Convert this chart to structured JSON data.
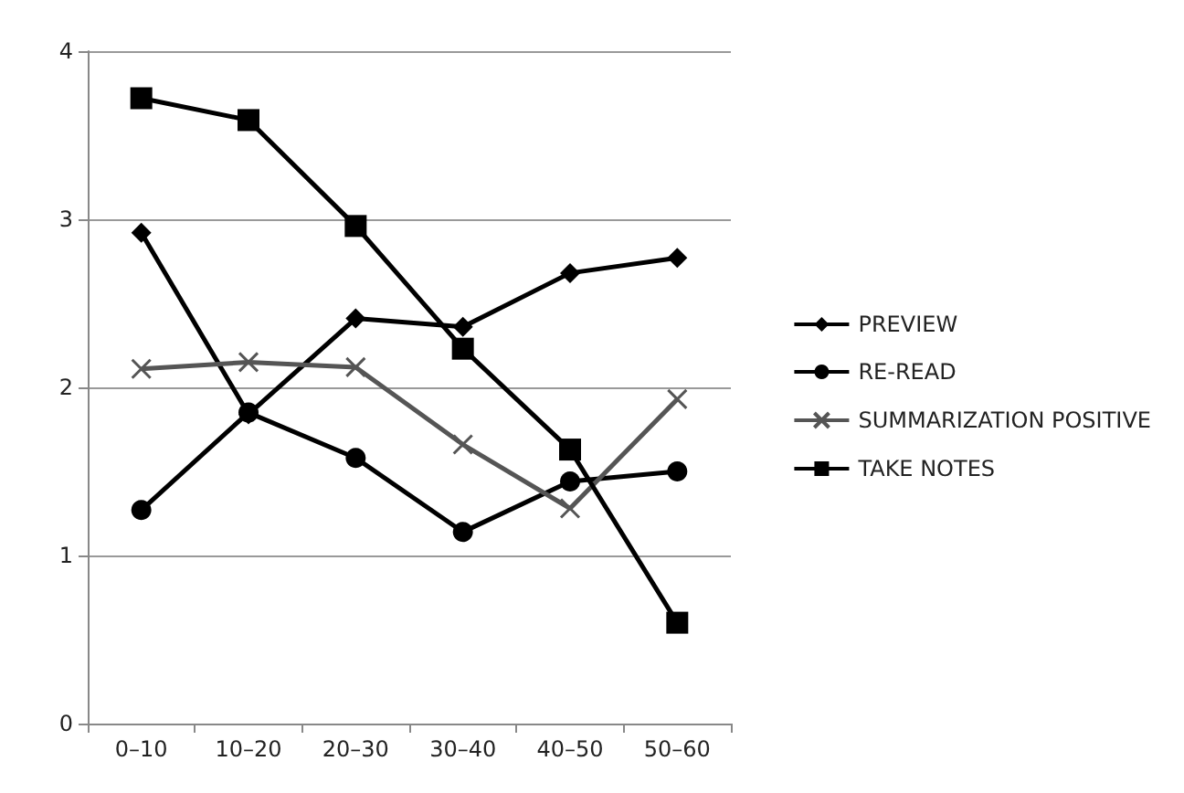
{
  "chart_data": {
    "type": "line",
    "categories": [
      "0–10",
      "10–20",
      "20–30",
      "30–40",
      "40–50",
      "50–60"
    ],
    "series": [
      {
        "name": "PREVIEW",
        "color": "#000000",
        "marker": "diamond",
        "values": [
          2.92,
          1.84,
          2.41,
          2.36,
          2.68,
          2.77
        ]
      },
      {
        "name": "RE-READ",
        "color": "#000000",
        "marker": "circle",
        "values": [
          1.27,
          1.85,
          1.58,
          1.14,
          1.44,
          1.5
        ]
      },
      {
        "name": "SUMMARIZATION POSITIVE",
        "color": "#555555",
        "marker": "cross",
        "values": [
          2.11,
          2.15,
          2.12,
          1.66,
          1.28,
          1.93
        ]
      },
      {
        "name": "TAKE NOTES",
        "color": "#000000",
        "marker": "square",
        "values": [
          3.72,
          3.59,
          2.96,
          2.23,
          1.63,
          0.6
        ]
      }
    ],
    "ylim": [
      0,
      4
    ],
    "yticks": [
      0,
      1,
      2,
      3,
      4
    ],
    "grid": "y",
    "legend": "right"
  }
}
